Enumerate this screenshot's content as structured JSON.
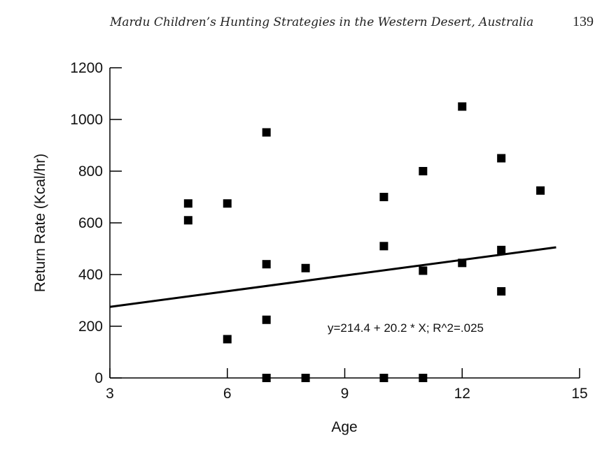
{
  "header": {
    "running_title": "Mardu Children’s Hunting Strategies in the Western Desert, Australia",
    "page_number": "139"
  },
  "chart_data": {
    "type": "scatter",
    "title": "",
    "xlabel": "Age",
    "ylabel": "Return Rate (Kcal/hr)",
    "xlim": [
      3,
      15
    ],
    "ylim": [
      0,
      1200
    ],
    "x_ticks": [
      3,
      6,
      9,
      12,
      15
    ],
    "y_ticks": [
      0,
      200,
      400,
      600,
      800,
      1000,
      1200
    ],
    "grid": false,
    "points": [
      {
        "x": 5,
        "y": 675
      },
      {
        "x": 5,
        "y": 610
      },
      {
        "x": 6,
        "y": 675
      },
      {
        "x": 6,
        "y": 150
      },
      {
        "x": 7,
        "y": 950
      },
      {
        "x": 7,
        "y": 440
      },
      {
        "x": 7,
        "y": 225
      },
      {
        "x": 7,
        "y": 0
      },
      {
        "x": 8,
        "y": 425
      },
      {
        "x": 8,
        "y": 0
      },
      {
        "x": 10,
        "y": 700
      },
      {
        "x": 10,
        "y": 510
      },
      {
        "x": 10,
        "y": 0
      },
      {
        "x": 11,
        "y": 800
      },
      {
        "x": 11,
        "y": 415
      },
      {
        "x": 11,
        "y": 0
      },
      {
        "x": 12,
        "y": 1050
      },
      {
        "x": 12,
        "y": 445
      },
      {
        "x": 13,
        "y": 850
      },
      {
        "x": 13,
        "y": 495
      },
      {
        "x": 13,
        "y": 335
      },
      {
        "x": 14,
        "y": 725
      }
    ],
    "fit_line": {
      "intercept": 214.4,
      "slope": 20.2,
      "x_start": 3,
      "x_end": 14.4
    },
    "annotation": "y=214.4 + 20.2 * X; R^2=.025"
  }
}
